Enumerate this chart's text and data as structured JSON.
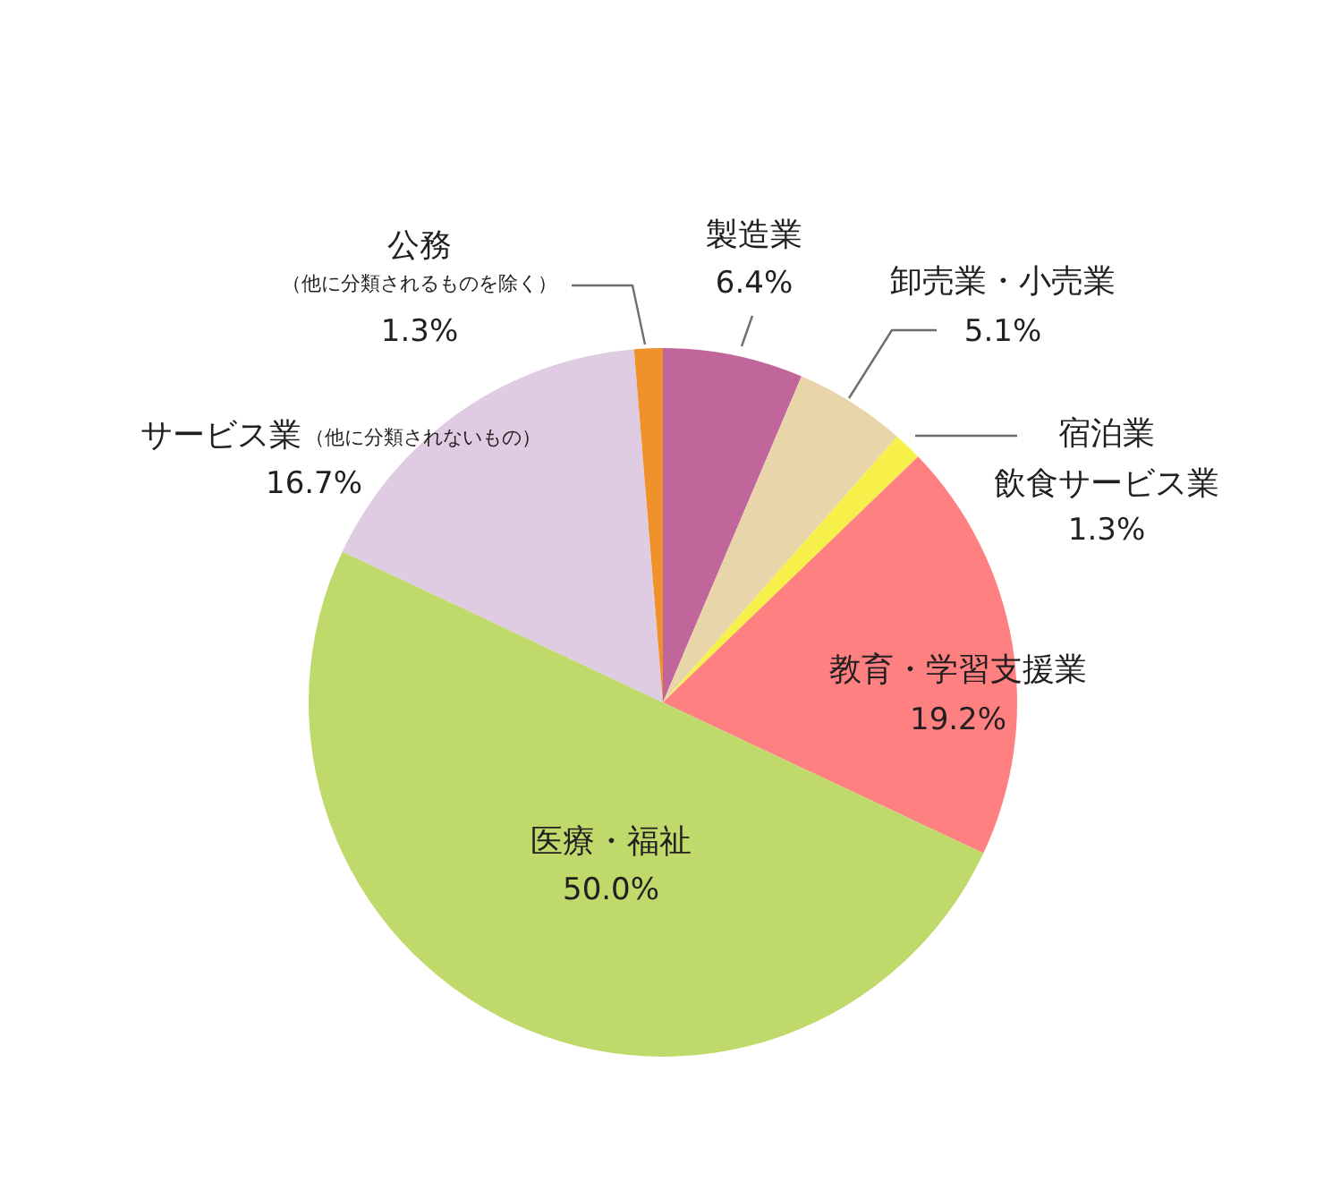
{
  "chart_data": {
    "type": "pie",
    "categories": [
      "製造業",
      "卸売業・小売業",
      "宿泊業飲食サービス業",
      "教育・学習支援業",
      "医療・福祉",
      "サービス業（他に分類されないもの）",
      "公務（他に分類されるものを除く）"
    ],
    "values": [
      6.4,
      5.1,
      1.3,
      19.2,
      50.0,
      16.7,
      1.3
    ],
    "colors": [
      "#c1669a",
      "#e9d5aa",
      "#f7f04b",
      "#ff8080",
      "#bfd96b",
      "#dfcce2",
      "#f0922b"
    ],
    "value_labels": [
      "6.4%",
      "5.1%",
      "1.3%",
      "19.2%",
      "50.0%",
      "16.7%",
      "1.3%"
    ]
  }
}
